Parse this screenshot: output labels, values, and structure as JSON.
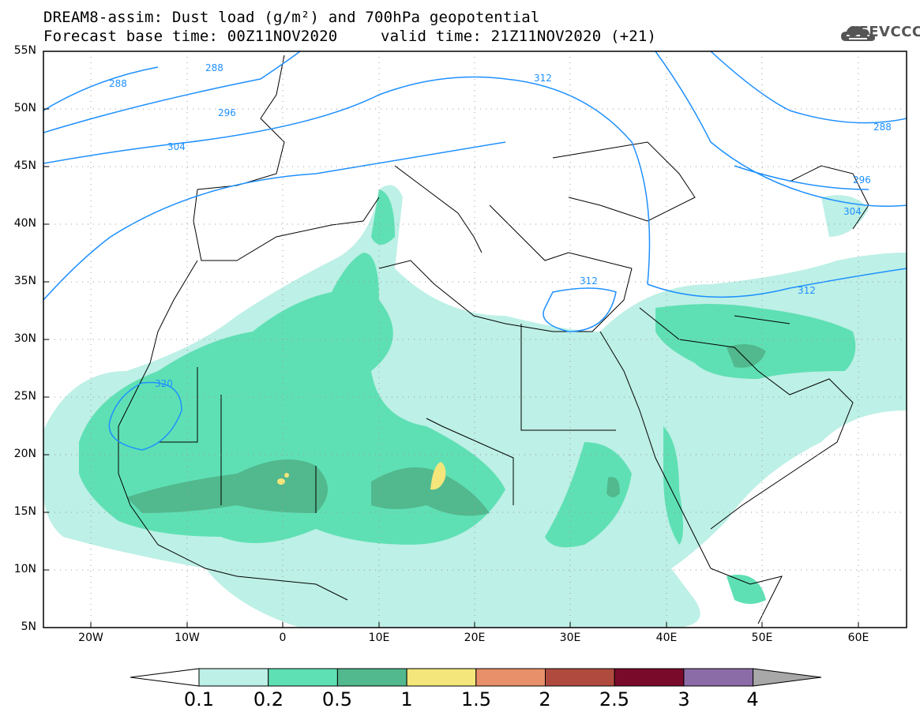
{
  "title": {
    "line1": "DREAM8-assim: Dust load (g/m²) and 700hPa geopotential",
    "line2a": "Forecast base time: 00Z11NOV2020",
    "line2b": "valid time: 21Z11NOV2020 (+21)"
  },
  "logo": {
    "text": "SEEVCCC",
    "icon": "cloud-icon"
  },
  "map": {
    "lat_range": [
      5,
      55
    ],
    "lon_range": [
      -25,
      65
    ],
    "lat_ticks": [
      "5N",
      "10N",
      "15N",
      "20N",
      "25N",
      "30N",
      "35N",
      "40N",
      "45N",
      "50N",
      "55N"
    ],
    "lon_ticks": [
      "20W",
      "10W",
      "0",
      "10E",
      "20E",
      "30E",
      "40E",
      "50E",
      "60E"
    ],
    "contour_labels": [
      "288",
      "288",
      "296",
      "304",
      "312",
      "312",
      "312",
      "320",
      "288",
      "296",
      "304"
    ]
  },
  "colorbar": {
    "levels": [
      "0.1",
      "0.2",
      "0.5",
      "1",
      "1.5",
      "2",
      "2.5",
      "3",
      "4"
    ],
    "colors": [
      "#bdf0e6",
      "#5fe0b4",
      "#52b88e",
      "#f4e67a",
      "#e8906a",
      "#b04a3e",
      "#7a0a2a",
      "#8c6ca6",
      "#a8a8a8"
    ]
  }
}
